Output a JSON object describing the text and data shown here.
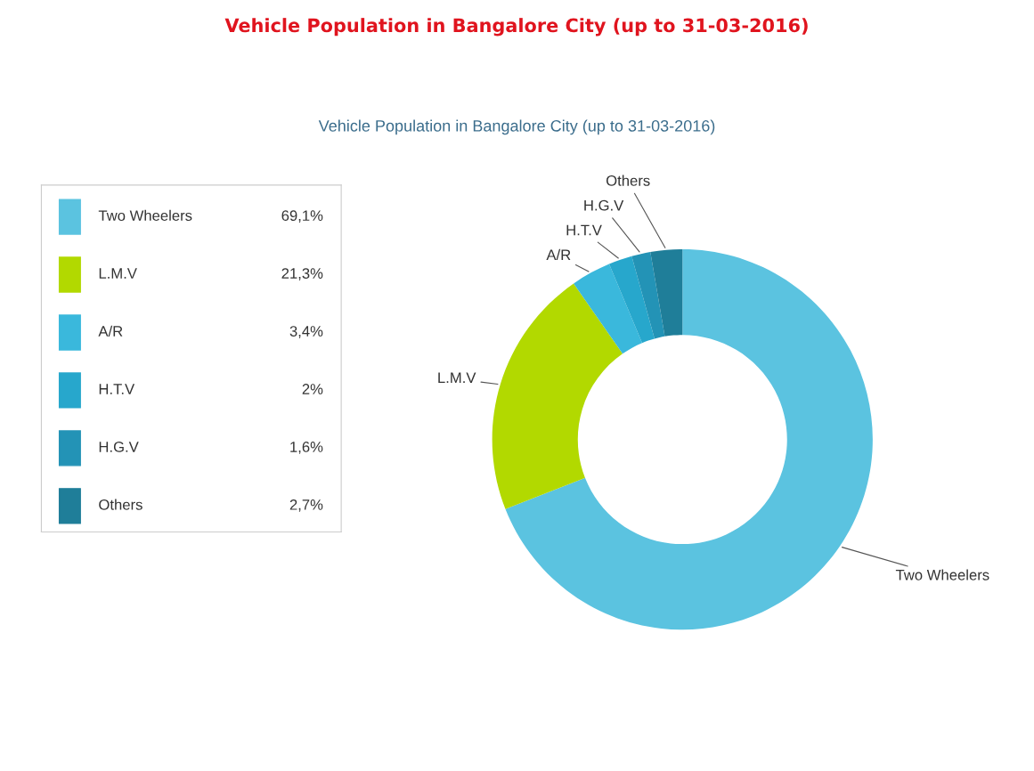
{
  "chart_data": {
    "type": "donut",
    "title": "Vehicle Population in Bangalore City (up to 31-03-2016)",
    "subtitle": "Vehicle Population in Bangalore City (up to 31-03-2016)",
    "categories": [
      "Two Wheelers",
      "L.M.V",
      "A/R",
      "H.T.V",
      "H.G.V",
      "Others"
    ],
    "values": [
      69.1,
      21.3,
      3.4,
      2,
      1.6,
      2.7
    ],
    "value_labels": [
      "69,1%",
      "21,3%",
      "3,4%",
      "2%",
      "1,6%",
      "2,7%"
    ],
    "colors": [
      "#5bc3e0",
      "#b2d900",
      "#3ab8dc",
      "#27a7cc",
      "#2393b6",
      "#1f7e99"
    ],
    "legend": "left"
  }
}
